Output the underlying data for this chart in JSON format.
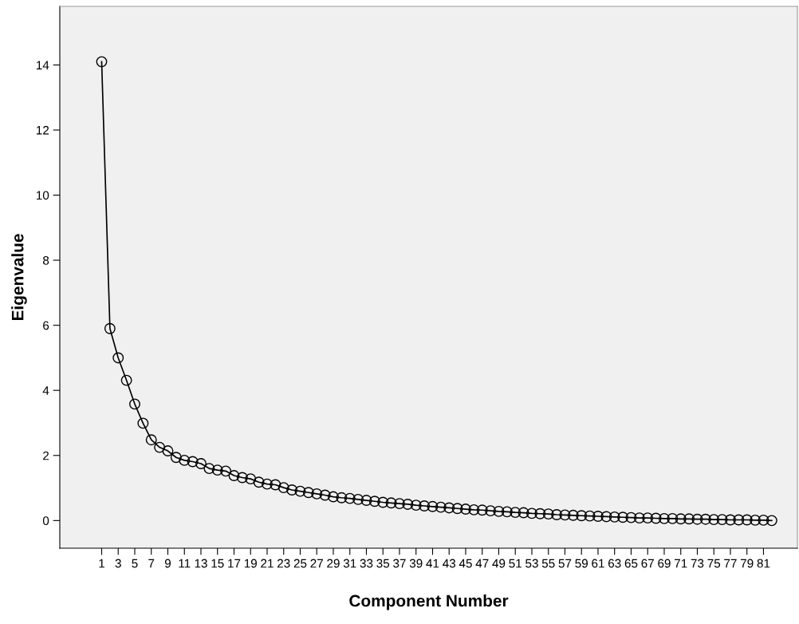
{
  "chart_data": {
    "type": "line",
    "xlabel": "Component Number",
    "ylabel": "Eigenvalue",
    "categories": [
      "1",
      null,
      "3",
      null,
      "5",
      null,
      "7",
      null,
      "9",
      null,
      "11",
      null,
      "13",
      null,
      "15",
      null,
      "17",
      null,
      "19",
      null,
      "21",
      null,
      "23",
      null,
      "25",
      null,
      "27",
      null,
      "29",
      null,
      "31",
      null,
      "33",
      null,
      "35",
      null,
      "37",
      null,
      "39",
      null,
      "41",
      null,
      "43",
      null,
      "45",
      null,
      "47",
      null,
      "49",
      null,
      "51",
      null,
      "53",
      null,
      "55",
      null,
      "57",
      null,
      "59",
      null,
      "61",
      null,
      "63",
      null,
      "65",
      null,
      "67",
      null,
      "69",
      null,
      "71",
      null,
      "73",
      null,
      "75",
      null,
      "77",
      null,
      "79",
      null,
      "81",
      null
    ],
    "series": [
      {
        "color": "#000000",
        "values": [
          14.1,
          5.9,
          5.0,
          4.31,
          3.58,
          2.99,
          2.48,
          2.25,
          2.14,
          1.94,
          1.85,
          1.81,
          1.75,
          1.6,
          1.55,
          1.52,
          1.38,
          1.32,
          1.28,
          1.18,
          1.12,
          1.1,
          1.01,
          0.94,
          0.9,
          0.86,
          0.82,
          0.78,
          0.73,
          0.7,
          0.68,
          0.65,
          0.62,
          0.59,
          0.56,
          0.54,
          0.52,
          0.5,
          0.47,
          0.45,
          0.43,
          0.41,
          0.39,
          0.37,
          0.35,
          0.33,
          0.32,
          0.3,
          0.28,
          0.27,
          0.25,
          0.24,
          0.22,
          0.21,
          0.2,
          0.18,
          0.17,
          0.16,
          0.15,
          0.14,
          0.13,
          0.12,
          0.11,
          0.1,
          0.09,
          0.08,
          0.08,
          0.07,
          0.06,
          0.06,
          0.05,
          0.05,
          0.04,
          0.04,
          0.03,
          0.03,
          0.02,
          0.02,
          0.02,
          0.01,
          0.01,
          0.0
        ]
      }
    ],
    "ylim": [
      -0.85,
      15.8
    ],
    "yticks": [
      0,
      2,
      4,
      6,
      8,
      10,
      12,
      14
    ],
    "grid": false,
    "legend": false,
    "marker": "circle",
    "line_style": "solid"
  }
}
